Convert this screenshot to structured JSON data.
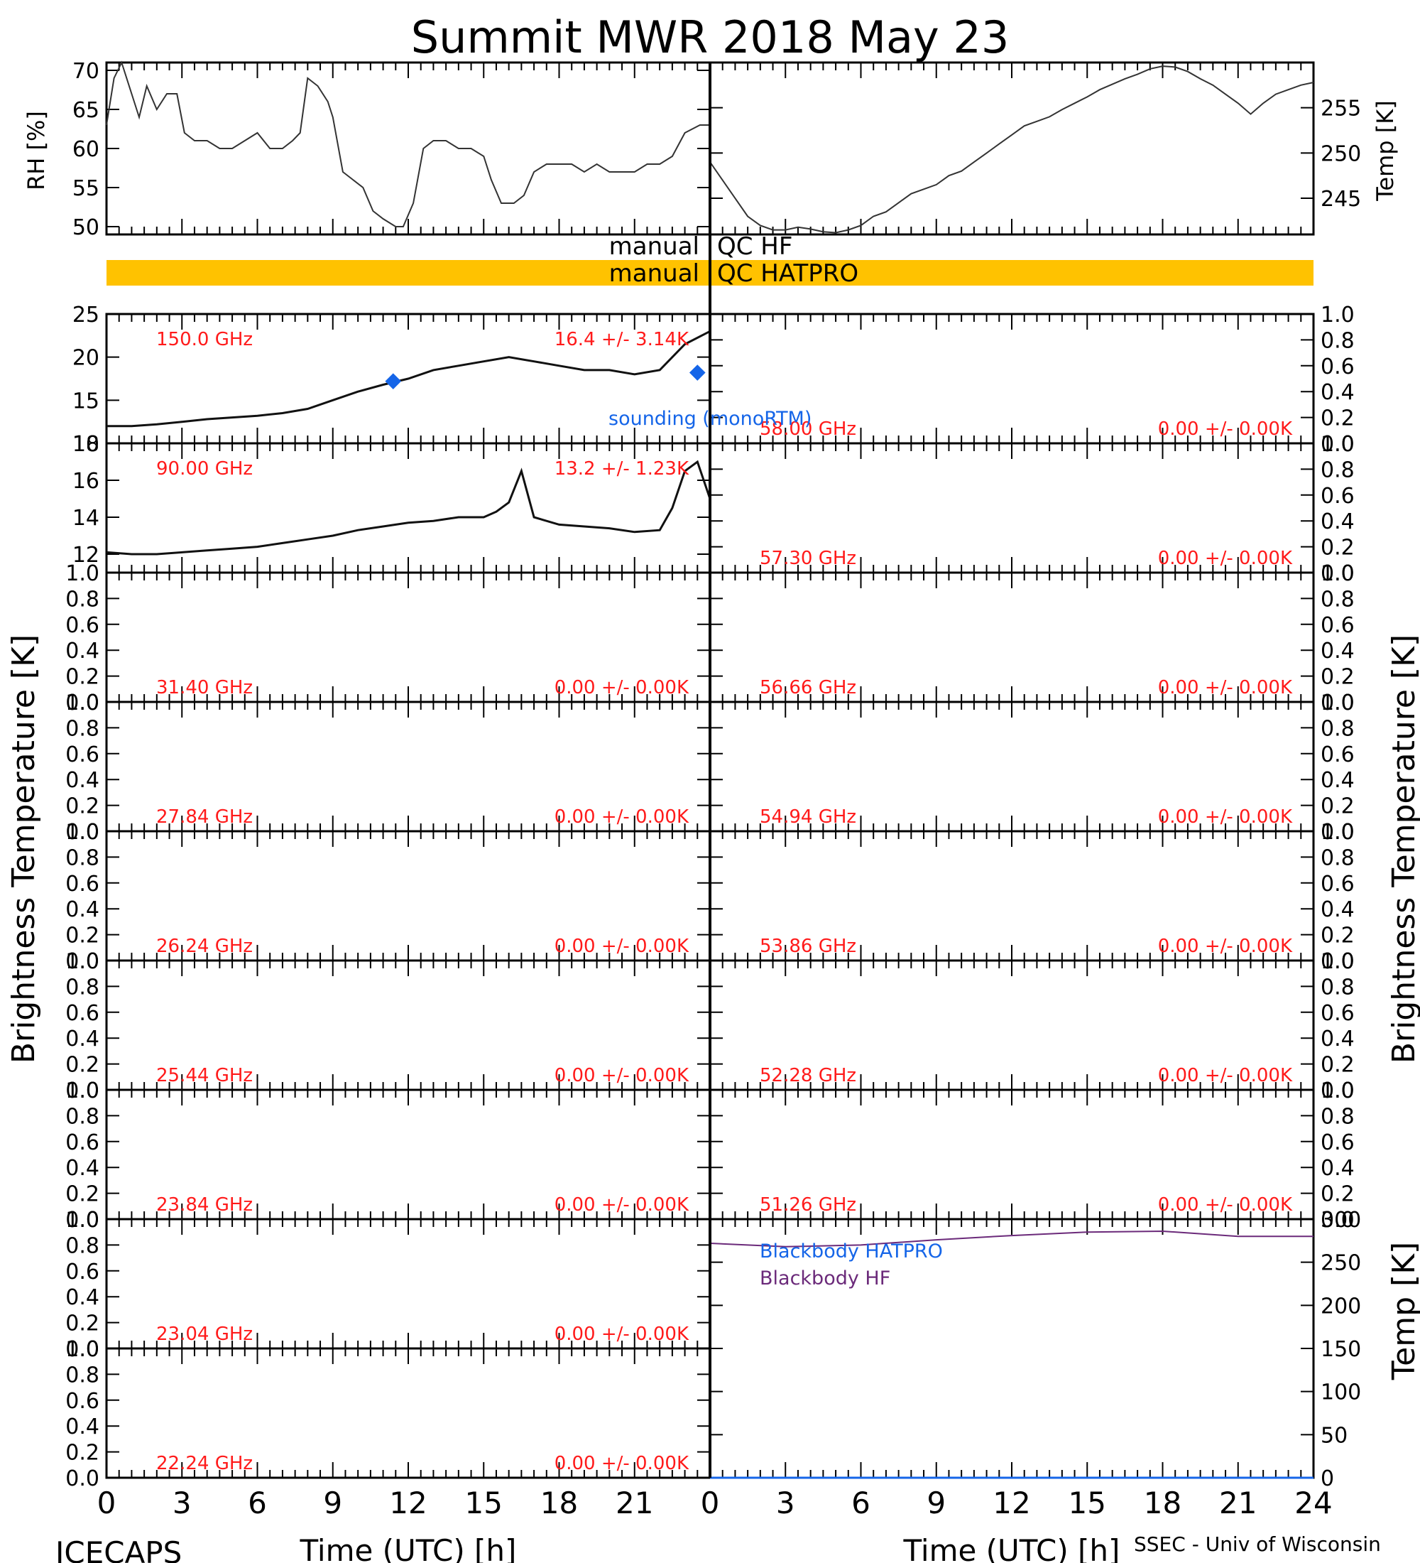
{
  "title": "Summit MWR 2018 May 23",
  "footer": {
    "left": "ICECAPS",
    "right": "SSEC - Univ of Wisconsin"
  },
  "colors": {
    "channel_label": "#ff1a1a",
    "sounding": "#1565e8",
    "blackbody_hatpro": "#1565e8",
    "blackbody_hf": "#6b2a7a",
    "qc_bar": "#ffc200",
    "trace": "#000000"
  },
  "qc": {
    "hf_left": "manual",
    "hf_right": "QC HF",
    "hatpro_left": "manual",
    "hatpro_right": "QC HATPRO"
  },
  "labels": {
    "brightness_temperature": "Brightness Temperature [K]",
    "temp_k": "Temp [K]",
    "rh": "RH [%]",
    "time": "Time (UTC) [h]",
    "sounding": "sounding (monoRTM)",
    "blackbody_hatpro": "Blackbody HATPRO",
    "blackbody_hf": "Blackbody HF"
  },
  "chart_data": [
    {
      "type": "line",
      "panel": "rh",
      "ylabel": "RH [%]",
      "ylim": [
        49,
        71
      ],
      "xlim": [
        0,
        24
      ],
      "yticks": [
        "50",
        "55",
        "60",
        "65",
        "70"
      ],
      "x": [
        0,
        0.3,
        0.6,
        1.0,
        1.3,
        1.6,
        2.0,
        2.4,
        2.8,
        3.1,
        3.5,
        4.0,
        4.5,
        5.0,
        5.5,
        6.0,
        6.5,
        7.0,
        7.4,
        7.7,
        8.0,
        8.4,
        8.8,
        9.0,
        9.4,
        9.8,
        10.2,
        10.6,
        11.0,
        11.5,
        11.8,
        12.2,
        12.6,
        13.0,
        13.5,
        14.0,
        14.5,
        15.0,
        15.3,
        15.7,
        16.2,
        16.6,
        17.0,
        17.5,
        18.0,
        18.5,
        19.0,
        19.5,
        20.0,
        20.5,
        21.0,
        21.5,
        22.0,
        22.5,
        23.0,
        23.6,
        24.0
      ],
      "y": [
        63,
        69,
        71,
        67,
        64,
        68,
        65,
        67,
        67,
        62,
        61,
        61,
        60,
        60,
        61,
        62,
        60,
        60,
        61,
        62,
        69,
        68,
        66,
        64,
        57,
        56,
        55,
        52,
        51,
        50,
        50,
        53,
        60,
        61,
        61,
        60,
        60,
        59,
        56,
        53,
        53,
        54,
        57,
        58,
        58,
        58,
        57,
        58,
        57,
        57,
        57,
        58,
        58,
        59,
        62,
        63,
        63
      ]
    },
    {
      "type": "line",
      "panel": "temp",
      "ylabel": "Temp [K]",
      "ylim": [
        241,
        260
      ],
      "xlim": [
        0,
        24
      ],
      "yticks": [
        "245",
        "250",
        "255"
      ],
      "x": [
        0,
        0.5,
        1,
        1.5,
        2,
        2.5,
        3,
        3.5,
        4,
        4.5,
        5,
        5.5,
        6,
        6.5,
        7,
        7.5,
        8,
        8.5,
        9,
        9.5,
        10,
        10.5,
        11,
        11.5,
        12,
        12.5,
        13,
        13.5,
        14,
        14.5,
        15,
        15.5,
        16,
        16.5,
        17,
        17.5,
        18,
        18.5,
        19,
        19.5,
        20,
        20.5,
        21,
        21.5,
        22,
        22.5,
        23,
        23.5,
        24
      ],
      "y": [
        249,
        247,
        245,
        243,
        242,
        241.5,
        241.5,
        241.8,
        241.6,
        241.3,
        241.2,
        241.5,
        242,
        243,
        243.5,
        244.5,
        245.5,
        246,
        246.5,
        247.5,
        248,
        249,
        250,
        251,
        252,
        253,
        253.5,
        254,
        254.8,
        255.5,
        256.2,
        257,
        257.6,
        258.2,
        258.7,
        259.3,
        259.6,
        259.5,
        259,
        258.2,
        257.5,
        256.5,
        255.5,
        254.3,
        255.5,
        256.5,
        257,
        257.5,
        257.8
      ]
    },
    {
      "type": "line",
      "panel": "150.0 GHz",
      "label": "150.0 GHz",
      "stats": "16.4 +/-  3.14K",
      "ylim": [
        10,
        25
      ],
      "xlim": [
        0,
        24
      ],
      "yticks": [
        "10",
        "15",
        "20",
        "25"
      ],
      "x": [
        0,
        1,
        2,
        3,
        4,
        5,
        6,
        7,
        8,
        9,
        10,
        11,
        12,
        13,
        14,
        15,
        16,
        17,
        18,
        19,
        20,
        21,
        22,
        23,
        24
      ],
      "y": [
        12,
        12,
        12.2,
        12.5,
        12.8,
        13,
        13.2,
        13.5,
        14,
        15,
        16,
        16.8,
        17.5,
        18.5,
        19,
        19.5,
        20,
        19.5,
        19,
        18.5,
        18.5,
        18,
        18.5,
        21.5,
        23
      ],
      "sounding": {
        "x": [
          11.4,
          23.5
        ],
        "y": [
          17.2,
          18.2
        ]
      }
    },
    {
      "type": "line",
      "panel": "90.00 GHz",
      "label": "90.00 GHz",
      "stats": "13.2 +/-  1.23K",
      "ylim": [
        11,
        18
      ],
      "xlim": [
        0,
        24
      ],
      "yticks": [
        "12",
        "14",
        "16",
        "18"
      ],
      "x": [
        0,
        1,
        2,
        3,
        4,
        5,
        6,
        7,
        8,
        9,
        10,
        11,
        12,
        13,
        14,
        15,
        15.5,
        16,
        16.5,
        17,
        18,
        19,
        20,
        21,
        22,
        22.5,
        23,
        23.5,
        24
      ],
      "y": [
        12.1,
        12,
        12,
        12.1,
        12.2,
        12.3,
        12.4,
        12.6,
        12.8,
        13,
        13.3,
        13.5,
        13.7,
        13.8,
        14,
        14,
        14.3,
        14.8,
        16.5,
        14,
        13.6,
        13.5,
        13.4,
        13.2,
        13.3,
        14.5,
        16.5,
        17,
        15
      ]
    },
    {
      "type": "line",
      "panel": "58.00 GHz",
      "label": "58.00 GHz",
      "stats": "0.00 +/-  0.00K",
      "ylim": [
        0,
        1
      ],
      "y": []
    },
    {
      "type": "line",
      "panel": "57.30 GHz",
      "label": "57.30 GHz",
      "stats": "0.00 +/-  0.00K",
      "ylim": [
        0,
        1
      ],
      "y": []
    },
    {
      "type": "line",
      "panel": "31.40 GHz",
      "label": "31.40 GHz",
      "stats": "0.00 +/-  0.00K",
      "ylim": [
        0,
        1
      ],
      "y": []
    },
    {
      "type": "line",
      "panel": "56.66 GHz",
      "label": "56.66 GHz",
      "stats": "0.00 +/-  0.00K",
      "ylim": [
        0,
        1
      ],
      "y": []
    },
    {
      "type": "line",
      "panel": "27.84 GHz",
      "label": "27.84 GHz",
      "stats": "0.00 +/-  0.00K",
      "ylim": [
        0,
        1
      ],
      "y": []
    },
    {
      "type": "line",
      "panel": "54.94 GHz",
      "label": "54.94 GHz",
      "stats": "0.00 +/-  0.00K",
      "ylim": [
        0,
        1
      ],
      "y": []
    },
    {
      "type": "line",
      "panel": "26.24 GHz",
      "label": "26.24 GHz",
      "stats": "0.00 +/-  0.00K",
      "ylim": [
        0,
        1
      ],
      "y": []
    },
    {
      "type": "line",
      "panel": "53.86 GHz",
      "label": "53.86 GHz",
      "stats": "0.00 +/-  0.00K",
      "ylim": [
        0,
        1
      ],
      "y": []
    },
    {
      "type": "line",
      "panel": "25.44 GHz",
      "label": "25.44 GHz",
      "stats": "0.00 +/-  0.00K",
      "ylim": [
        0,
        1
      ],
      "y": []
    },
    {
      "type": "line",
      "panel": "52.28 GHz",
      "label": "52.28 GHz",
      "stats": "0.00 +/-  0.00K",
      "ylim": [
        0,
        1
      ],
      "y": []
    },
    {
      "type": "line",
      "panel": "23.84 GHz",
      "label": "23.84 GHz",
      "stats": "0.00 +/-  0.00K",
      "ylim": [
        0,
        1
      ],
      "y": []
    },
    {
      "type": "line",
      "panel": "51.26 GHz",
      "label": "51.26 GHz",
      "stats": "0.00 +/-  0.00K",
      "ylim": [
        0,
        1
      ],
      "y": []
    },
    {
      "type": "line",
      "panel": "23.04 GHz",
      "label": "23.04 GHz",
      "stats": "0.00 +/-  0.00K",
      "ylim": [
        0,
        1
      ],
      "y": []
    },
    {
      "type": "line",
      "panel": "22.24 GHz",
      "label": "22.24 GHz",
      "stats": "0.00 +/-  0.00K",
      "ylim": [
        0,
        1
      ],
      "y": []
    },
    {
      "type": "line",
      "panel": "blackbody",
      "ylabel": "Temp [K]",
      "ylim": [
        0,
        300
      ],
      "xlim": [
        0,
        24
      ],
      "yticks": [
        "0",
        "50",
        "100",
        "150",
        "200",
        "250",
        "300"
      ],
      "series": [
        {
          "name": "Blackbody HATPRO",
          "x": [
            0,
            24
          ],
          "y": [
            0,
            0
          ]
        },
        {
          "name": "Blackbody HF",
          "x": [
            0,
            3,
            6,
            9,
            12,
            15,
            18,
            21,
            24
          ],
          "y": [
            272,
            268,
            270,
            276,
            281,
            285,
            286,
            280,
            280
          ]
        }
      ]
    }
  ],
  "axes": {
    "bt_ticks": [
      "0.0",
      "0.2",
      "0.4",
      "0.6",
      "0.8",
      "1.0"
    ],
    "x_ticks_left": [
      "0",
      "3",
      "6",
      "9",
      "12",
      "15",
      "18",
      "21"
    ],
    "x_ticks_right": [
      "0",
      "3",
      "6",
      "9",
      "12",
      "15",
      "18",
      "21",
      "24"
    ]
  }
}
